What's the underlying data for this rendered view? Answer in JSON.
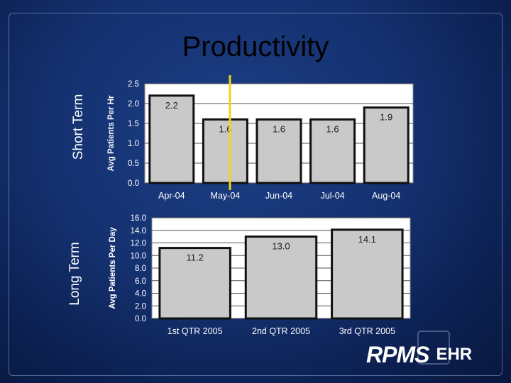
{
  "title": "Productivity",
  "side_labels": {
    "short": "Short Term",
    "long": "Long Term"
  },
  "logo": {
    "rpms": "RPMS",
    "ehr": "EHR"
  },
  "colors": {
    "bar_fill": "#c9c9c9",
    "bar_edge": "#111111",
    "plot_bg": "#ffffff",
    "highlight_line": "#f2d21b"
  },
  "chart_data": [
    {
      "type": "bar",
      "categories": [
        "Apr-04",
        "May-04",
        "Jun-04",
        "Jul-04",
        "Aug-04"
      ],
      "values": [
        2.2,
        1.6,
        1.6,
        1.6,
        1.9
      ],
      "value_labels": [
        "2.2",
        "1.6",
        "1.6",
        "1.6",
        "1.9"
      ],
      "ylabel": "Avg Patients Per Hr",
      "ylim": [
        0,
        2.5
      ],
      "yticks": [
        "0.0",
        "0.5",
        "1.0",
        "1.5",
        "2.0",
        "2.5"
      ],
      "grid": true
    },
    {
      "type": "bar",
      "categories": [
        "1st QTR 2005",
        "2nd QTR 2005",
        "3rd QTR 2005"
      ],
      "values": [
        11.2,
        13.0,
        14.1
      ],
      "value_labels": [
        "11.2",
        "13.0",
        "14.1"
      ],
      "ylabel": "Avg Patients Per Day",
      "ylim": [
        0,
        16
      ],
      "yticks": [
        "0.0",
        "2.0",
        "4.0",
        "6.0",
        "8.0",
        "10.0",
        "12.0",
        "14.0",
        "16.0"
      ],
      "grid": true
    }
  ]
}
